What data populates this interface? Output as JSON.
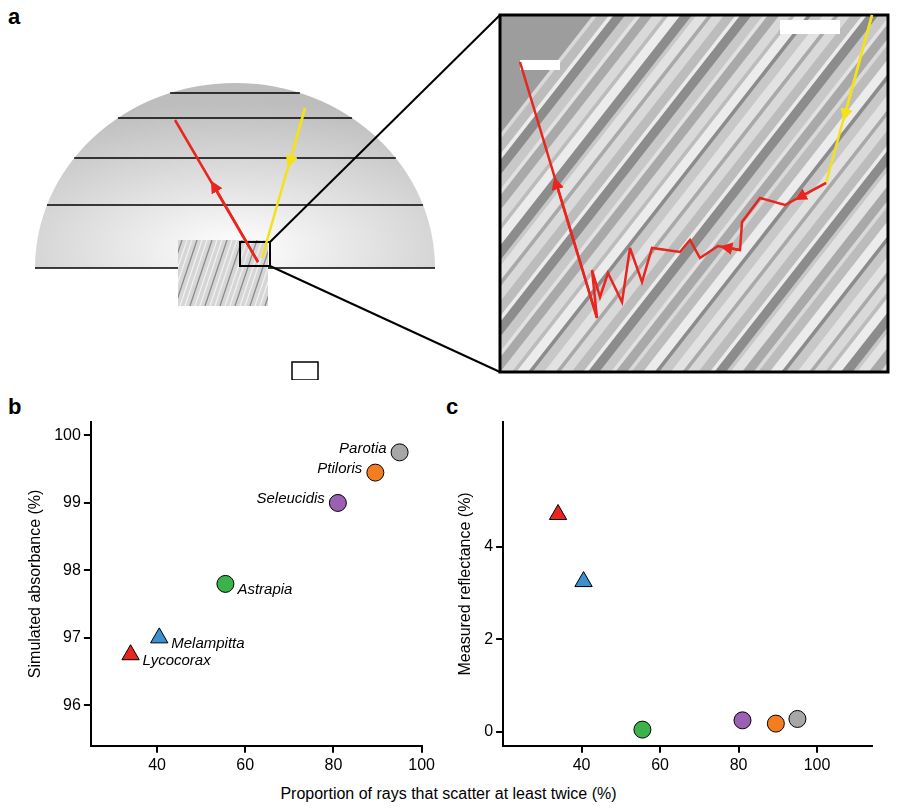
{
  "diagram": {
    "panel_label": "a"
  },
  "xlabel": "Proportion of rays that scatter at least twice (%)",
  "chart_data": [
    {
      "type": "scatter",
      "panel_label": "b",
      "ylabel": "Simulated absorbance (%)",
      "xlim": [
        25,
        100
      ],
      "xticks": [
        40,
        60,
        80,
        100
      ],
      "ylim": [
        95.4,
        100.2
      ],
      "yticks": [
        96,
        97,
        98,
        99,
        100
      ],
      "grid": false,
      "series": [
        {
          "name": "Lycocorax",
          "color": "#e8251f",
          "marker": "triangle",
          "x": [
            34
          ],
          "values": [
            96.75
          ]
        },
        {
          "name": "Melampitta",
          "color": "#3d8fd0",
          "marker": "triangle",
          "x": [
            40.5
          ],
          "values": [
            97.0
          ]
        },
        {
          "name": "Astrapia",
          "color": "#3cb34a",
          "marker": "circle",
          "x": [
            55.5
          ],
          "values": [
            97.8
          ]
        },
        {
          "name": "Seleucidis",
          "color": "#9b5fb4",
          "marker": "circle",
          "x": [
            81
          ],
          "values": [
            99.0
          ]
        },
        {
          "name": "Ptiloris",
          "color": "#f47d20",
          "marker": "circle",
          "x": [
            89.5
          ],
          "values": [
            99.45
          ]
        },
        {
          "name": "Parotia",
          "color": "#a7a7a7",
          "marker": "circle",
          "x": [
            95
          ],
          "values": [
            99.75
          ]
        }
      ]
    },
    {
      "type": "scatter",
      "panel_label": "c",
      "ylabel": "Measured reflectance (%)",
      "xlim": [
        20,
        114
      ],
      "xticks": [
        40,
        60,
        80,
        100
      ],
      "ylim": [
        -0.3,
        6.7
      ],
      "yticks": [
        0,
        2,
        4
      ],
      "grid": false,
      "series": [
        {
          "color": "#e8251f",
          "marker": "triangle",
          "x": [
            34
          ],
          "values": [
            4.7
          ]
        },
        {
          "color": "#3d8fd0",
          "marker": "triangle",
          "x": [
            40.5
          ],
          "values": [
            3.25
          ]
        },
        {
          "color": "#3cb34a",
          "marker": "circle",
          "x": [
            55.5
          ],
          "values": [
            0.05
          ]
        },
        {
          "color": "#9b5fb4",
          "marker": "circle",
          "x": [
            81
          ],
          "values": [
            0.25
          ]
        },
        {
          "color": "#f47d20",
          "marker": "circle",
          "x": [
            89.5
          ],
          "values": [
            0.18
          ]
        },
        {
          "color": "#a7a7a7",
          "marker": "circle",
          "x": [
            95
          ],
          "values": [
            0.28
          ]
        }
      ]
    }
  ]
}
